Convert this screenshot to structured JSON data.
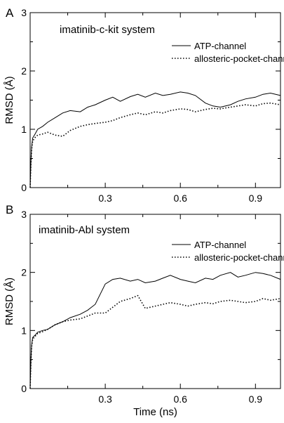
{
  "chart_data": [
    {
      "type": "line",
      "panel_letter": "A",
      "title": "imatinib-c-kit system",
      "xlabel": "",
      "ylabel": "RMSD (Å)",
      "xlim": [
        0,
        1.0
      ],
      "ylim": [
        0,
        3
      ],
      "xticks": [
        0.3,
        0.6,
        0.9
      ],
      "xtick_labels": [
        "0.3",
        "0.6",
        "0.9"
      ],
      "yticks": [
        0,
        1,
        2,
        3
      ],
      "ytick_labels": [
        "0",
        "1",
        "2",
        "3"
      ],
      "grid": false,
      "legend_placement": "top-right",
      "series": [
        {
          "name": "ATP-channel",
          "style": "solid",
          "color": "#000000",
          "x": [
            0,
            0.003,
            0.006,
            0.01,
            0.02,
            0.03,
            0.05,
            0.07,
            0.1,
            0.13,
            0.16,
            0.2,
            0.23,
            0.26,
            0.3,
            0.33,
            0.36,
            0.4,
            0.43,
            0.46,
            0.5,
            0.53,
            0.56,
            0.6,
            0.63,
            0.66,
            0.7,
            0.73,
            0.76,
            0.8,
            0.83,
            0.86,
            0.9,
            0.93,
            0.96,
            1.0
          ],
          "y": [
            0,
            0.45,
            0.7,
            0.85,
            0.92,
            1.0,
            1.05,
            1.12,
            1.2,
            1.28,
            1.32,
            1.3,
            1.38,
            1.42,
            1.5,
            1.55,
            1.48,
            1.56,
            1.6,
            1.55,
            1.62,
            1.58,
            1.6,
            1.64,
            1.62,
            1.58,
            1.45,
            1.4,
            1.38,
            1.42,
            1.48,
            1.52,
            1.55,
            1.6,
            1.62,
            1.58
          ]
        },
        {
          "name": "allosteric-pocket-channel",
          "style": "dotted",
          "color": "#000000",
          "x": [
            0,
            0.003,
            0.006,
            0.01,
            0.02,
            0.03,
            0.05,
            0.07,
            0.1,
            0.13,
            0.16,
            0.2,
            0.23,
            0.26,
            0.3,
            0.33,
            0.36,
            0.4,
            0.43,
            0.46,
            0.5,
            0.53,
            0.56,
            0.6,
            0.63,
            0.66,
            0.7,
            0.73,
            0.76,
            0.8,
            0.83,
            0.86,
            0.9,
            0.93,
            0.96,
            1.0
          ],
          "y": [
            0,
            0.4,
            0.65,
            0.8,
            0.86,
            0.9,
            0.92,
            0.95,
            0.9,
            0.88,
            0.98,
            1.05,
            1.08,
            1.1,
            1.12,
            1.15,
            1.2,
            1.25,
            1.28,
            1.25,
            1.3,
            1.28,
            1.32,
            1.35,
            1.34,
            1.3,
            1.34,
            1.36,
            1.35,
            1.38,
            1.4,
            1.42,
            1.4,
            1.44,
            1.45,
            1.42
          ]
        }
      ]
    },
    {
      "type": "line",
      "panel_letter": "B",
      "title": "imatinib-Abl system",
      "xlabel": "Time (ns)",
      "ylabel": "RMSD (Å)",
      "xlim": [
        0,
        1.0
      ],
      "ylim": [
        0,
        3
      ],
      "xticks": [
        0.3,
        0.6,
        0.9
      ],
      "xtick_labels": [
        "0.3",
        "0.6",
        "0.9"
      ],
      "yticks": [
        0,
        1,
        2,
        3
      ],
      "ytick_labels": [
        "0",
        "1",
        "2",
        "3"
      ],
      "grid": false,
      "legend_placement": "top-right",
      "series": [
        {
          "name": "ATP-channel",
          "style": "solid",
          "color": "#000000",
          "x": [
            0,
            0.003,
            0.006,
            0.01,
            0.02,
            0.03,
            0.05,
            0.07,
            0.1,
            0.13,
            0.16,
            0.2,
            0.23,
            0.26,
            0.3,
            0.33,
            0.36,
            0.4,
            0.43,
            0.46,
            0.5,
            0.53,
            0.56,
            0.6,
            0.63,
            0.66,
            0.7,
            0.73,
            0.76,
            0.8,
            0.83,
            0.86,
            0.9,
            0.93,
            0.96,
            1.0
          ],
          "y": [
            0,
            0.5,
            0.75,
            0.88,
            0.92,
            0.97,
            1.0,
            1.02,
            1.1,
            1.15,
            1.22,
            1.28,
            1.35,
            1.45,
            1.8,
            1.88,
            1.9,
            1.85,
            1.88,
            1.82,
            1.85,
            1.9,
            1.95,
            1.88,
            1.85,
            1.82,
            1.9,
            1.88,
            1.95,
            2.0,
            1.92,
            1.95,
            2.0,
            1.98,
            1.95,
            1.88
          ]
        },
        {
          "name": "allosteric-pocket-channel",
          "style": "dotted",
          "color": "#000000",
          "x": [
            0,
            0.003,
            0.006,
            0.01,
            0.02,
            0.03,
            0.05,
            0.07,
            0.1,
            0.13,
            0.16,
            0.2,
            0.23,
            0.26,
            0.3,
            0.33,
            0.36,
            0.4,
            0.43,
            0.46,
            0.5,
            0.53,
            0.56,
            0.6,
            0.63,
            0.66,
            0.7,
            0.73,
            0.76,
            0.8,
            0.83,
            0.86,
            0.9,
            0.93,
            0.96,
            1.0
          ],
          "y": [
            0,
            0.45,
            0.72,
            0.85,
            0.9,
            0.95,
            0.98,
            1.02,
            1.1,
            1.15,
            1.18,
            1.2,
            1.25,
            1.3,
            1.3,
            1.4,
            1.5,
            1.55,
            1.6,
            1.38,
            1.42,
            1.45,
            1.48,
            1.45,
            1.42,
            1.45,
            1.48,
            1.46,
            1.5,
            1.52,
            1.5,
            1.48,
            1.5,
            1.55,
            1.52,
            1.55
          ]
        }
      ]
    }
  ]
}
